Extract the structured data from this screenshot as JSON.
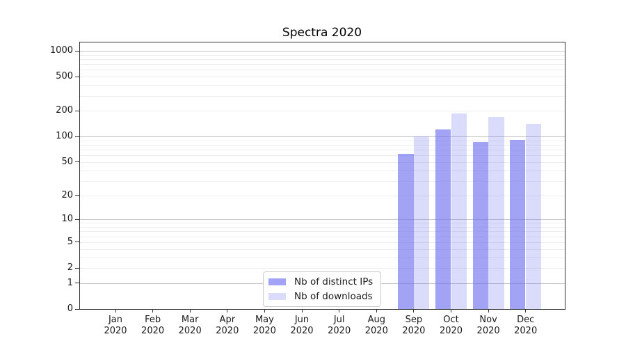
{
  "title": "Spectra 2020",
  "chart_data": {
    "type": "bar",
    "title": "Spectra 2020",
    "categories": [
      "Jan 2020",
      "Feb 2020",
      "Mar 2020",
      "Apr 2020",
      "May 2020",
      "Jun 2020",
      "Jul 2020",
      "Aug 2020",
      "Sep 2020",
      "Oct 2020",
      "Nov 2020",
      "Dec 2020"
    ],
    "series": [
      {
        "name": "Nb of distinct IPs",
        "color": "rgba(110,110,240,0.63)",
        "values": [
          0,
          0,
          0,
          0,
          0,
          0,
          0,
          0,
          63,
          120,
          87,
          91
        ]
      },
      {
        "name": "Nb of downloads",
        "color": "rgba(110,110,240,0.25)",
        "values": [
          0,
          0,
          0,
          0,
          0,
          0,
          0,
          0,
          100,
          188,
          170,
          140
        ]
      }
    ],
    "xlabel": "",
    "ylabel": "",
    "y_axis": {
      "scale": "log1p",
      "tick_values": [
        0,
        1,
        2,
        5,
        10,
        20,
        50,
        100,
        200,
        500,
        1000
      ],
      "max": 1250,
      "major_grid_values": [
        1,
        10,
        100,
        1000
      ],
      "minor_grid_values": [
        2,
        3,
        4,
        5,
        6,
        7,
        8,
        9,
        20,
        30,
        40,
        50,
        60,
        70,
        80,
        90,
        200,
        300,
        400,
        500,
        600,
        700,
        800,
        900
      ]
    },
    "grid": "horizontal",
    "legend_position": "lower center"
  },
  "colors": {
    "major_grid": "#c3c3c3",
    "minor_grid": "#ededed",
    "spine": "#333333",
    "text": "#1a1a1a",
    "legend_border": "#cccccc",
    "background": "#ffffff"
  }
}
